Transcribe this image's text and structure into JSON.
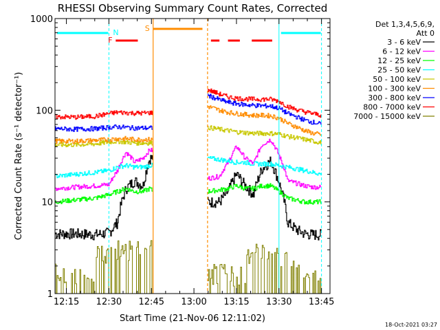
{
  "chart_data": {
    "type": "line",
    "title": "RHESSI Observing Summary Count Rates, Corrected",
    "xlabel": "Start Time (21-Nov-06 12:11:02)",
    "ylabel": "Corrected Count Rate (s⁻¹ detector⁻¹)",
    "xlim": [
      12.183,
      13.8
    ],
    "ylim": [
      1,
      1000
    ],
    "yscale": "log",
    "x_ticks": [
      {
        "value": 12.25,
        "label": "12:15"
      },
      {
        "value": 12.5,
        "label": "12:30"
      },
      {
        "value": 12.75,
        "label": "12:45"
      },
      {
        "value": 13.0,
        "label": "13:00"
      },
      {
        "value": 13.25,
        "label": "13:15"
      },
      {
        "value": 13.5,
        "label": "13:30"
      },
      {
        "value": 13.75,
        "label": "13:45"
      }
    ],
    "y_ticks": [
      {
        "value": 1,
        "label": "1"
      },
      {
        "value": 10,
        "label": "10"
      },
      {
        "value": 100,
        "label": "100"
      },
      {
        "value": 1000,
        "label": "1000"
      }
    ],
    "legend": {
      "header": [
        "Det 1,3,4,5,6,9,",
        "Att 0"
      ],
      "placement": "right"
    },
    "footer": "18-Oct-2021 03:27",
    "series": [
      {
        "name": "3 - 6 keV",
        "color": "#000000",
        "kind": "low",
        "x": [
          12.183,
          12.3,
          12.42,
          12.5,
          12.55,
          12.6,
          12.65,
          12.7,
          12.74,
          12.76
        ],
        "y": [
          4.5,
          4.5,
          4.4,
          4.6,
          6,
          14,
          17,
          15,
          30,
          30
        ]
      },
      {
        "name": "3 - 6 keV",
        "color": "#000000",
        "kind": "flare",
        "x": [
          13.08,
          13.15,
          13.2,
          13.25,
          13.3,
          13.35,
          13.4,
          13.45,
          13.5,
          13.55,
          13.6,
          13.65,
          13.7,
          13.75
        ],
        "y": [
          10,
          10,
          13,
          20,
          15,
          12,
          23,
          28,
          16,
          6,
          5,
          4.5,
          4.4,
          4.4
        ]
      },
      {
        "name": "6 - 12 keV",
        "color": "#ff00ff",
        "kind": "low",
        "x": [
          12.183,
          12.3,
          12.42,
          12.5,
          12.55,
          12.6,
          12.65,
          12.7,
          12.74,
          12.76
        ],
        "y": [
          14,
          14.5,
          15,
          15.5,
          22,
          35,
          27,
          30,
          37,
          36
        ]
      },
      {
        "name": "6 - 12 keV",
        "color": "#ff00ff",
        "kind": "flare",
        "x": [
          13.08,
          13.15,
          13.2,
          13.25,
          13.3,
          13.35,
          13.4,
          13.45,
          13.5,
          13.55,
          13.6,
          13.65,
          13.7,
          13.75
        ],
        "y": [
          18,
          19,
          27,
          40,
          30,
          26,
          42,
          48,
          32,
          17,
          16,
          15,
          14.5,
          14.5
        ]
      },
      {
        "name": "12 - 25 keV",
        "color": "#00ff00",
        "kind": "low",
        "x": [
          12.183,
          12.3,
          12.42,
          12.5,
          12.55,
          12.6,
          12.65,
          12.7,
          12.74,
          12.76
        ],
        "y": [
          10,
          10.5,
          11,
          12,
          13,
          14,
          13,
          13,
          14,
          13
        ]
      },
      {
        "name": "12 - 25 keV",
        "color": "#00ff00",
        "kind": "flare",
        "x": [
          13.08,
          13.15,
          13.2,
          13.25,
          13.3,
          13.35,
          13.4,
          13.45,
          13.5,
          13.55,
          13.6,
          13.65,
          13.7,
          13.75
        ],
        "y": [
          13,
          13.5,
          14,
          15,
          14,
          14,
          15,
          15,
          13,
          11,
          10.5,
          10,
          10,
          10
        ]
      },
      {
        "name": "25 - 50 keV",
        "color": "#00ffff",
        "kind": "low",
        "x": [
          12.183,
          12.3,
          12.42,
          12.5,
          12.55,
          12.6,
          12.65,
          12.7,
          12.74,
          12.76
        ],
        "y": [
          19,
          20,
          21,
          22,
          24,
          25,
          24,
          24,
          25,
          25
        ]
      },
      {
        "name": "25 - 50 keV",
        "color": "#00ffff",
        "kind": "flare",
        "x": [
          13.08,
          13.15,
          13.2,
          13.25,
          13.3,
          13.35,
          13.4,
          13.45,
          13.5,
          13.55,
          13.6,
          13.65,
          13.7,
          13.75
        ],
        "y": [
          30,
          29,
          28,
          27,
          27,
          26,
          26,
          26,
          25,
          24,
          23,
          22,
          21,
          20
        ]
      },
      {
        "name": "50 - 100 keV",
        "color": "#c8c800",
        "kind": "low",
        "x": [
          12.183,
          12.3,
          12.42,
          12.5,
          12.55,
          12.6,
          12.65,
          12.7,
          12.74,
          12.76
        ],
        "y": [
          42,
          42,
          43,
          45,
          46,
          45,
          44,
          44,
          44,
          44
        ]
      },
      {
        "name": "50 - 100 keV",
        "color": "#c8c800",
        "kind": "flare",
        "x": [
          13.08,
          13.15,
          13.2,
          13.25,
          13.3,
          13.35,
          13.4,
          13.45,
          13.5,
          13.55,
          13.6,
          13.65,
          13.7,
          13.75
        ],
        "y": [
          65,
          62,
          60,
          58,
          57,
          56,
          56,
          56,
          55,
          52,
          50,
          48,
          46,
          44
        ]
      },
      {
        "name": "100 - 300 keV",
        "color": "#ff8c00",
        "kind": "low",
        "x": [
          12.183,
          12.3,
          12.42,
          12.5,
          12.55,
          12.6,
          12.65,
          12.7,
          12.74,
          12.76
        ],
        "y": [
          46,
          46,
          47,
          48,
          49,
          49,
          48,
          48,
          48,
          48
        ]
      },
      {
        "name": "100 - 300 keV",
        "color": "#ff8c00",
        "kind": "flare",
        "x": [
          13.08,
          13.15,
          13.2,
          13.25,
          13.3,
          13.35,
          13.4,
          13.45,
          13.5,
          13.55,
          13.6,
          13.65,
          13.7,
          13.75
        ],
        "y": [
          110,
          100,
          95,
          92,
          90,
          88,
          88,
          87,
          82,
          72,
          66,
          60,
          56,
          54
        ]
      },
      {
        "name": "300 - 800 keV",
        "color": "#0000ff",
        "kind": "low",
        "x": [
          12.183,
          12.3,
          12.42,
          12.5,
          12.55,
          12.6,
          12.65,
          12.7,
          12.74,
          12.76
        ],
        "y": [
          63,
          62,
          63,
          65,
          66,
          65,
          64,
          64,
          64,
          64
        ]
      },
      {
        "name": "300 - 800 keV",
        "color": "#0000ff",
        "kind": "flare",
        "x": [
          13.08,
          13.15,
          13.2,
          13.25,
          13.3,
          13.35,
          13.4,
          13.45,
          13.5,
          13.55,
          13.6,
          13.65,
          13.7,
          13.75
        ],
        "y": [
          145,
          130,
          122,
          118,
          115,
          113,
          112,
          111,
          105,
          92,
          85,
          78,
          74,
          70
        ]
      },
      {
        "name": "800 - 7000 keV",
        "color": "#ff0000",
        "kind": "low",
        "x": [
          12.183,
          12.3,
          12.42,
          12.5,
          12.55,
          12.6,
          12.65,
          12.7,
          12.74,
          12.76
        ],
        "y": [
          85,
          84,
          86,
          92,
          95,
          94,
          93,
          93,
          94,
          94
        ]
      },
      {
        "name": "800 - 7000 keV",
        "color": "#ff0000",
        "kind": "flare",
        "x": [
          13.08,
          13.15,
          13.2,
          13.25,
          13.3,
          13.35,
          13.4,
          13.45,
          13.5,
          13.55,
          13.6,
          13.65,
          13.7,
          13.75
        ],
        "y": [
          168,
          150,
          140,
          135,
          133,
          132,
          132,
          132,
          125,
          110,
          102,
          96,
          92,
          88
        ]
      },
      {
        "name": "7000 - 15000 keV",
        "color": "#808000",
        "kind": "steps",
        "x": [
          12.183,
          12.42,
          12.42,
          12.5,
          12.5,
          12.74,
          12.76
        ],
        "y": [
          1.5,
          1.5,
          2.5,
          2.5,
          2.8,
          2.8,
          2.8
        ]
      },
      {
        "name": "7000 - 15000 keV",
        "color": "#808000",
        "kind": "steps",
        "x": [
          13.08,
          13.3,
          13.3,
          13.5,
          13.5,
          13.6,
          13.6,
          13.75
        ],
        "y": [
          1.5,
          1.5,
          2.5,
          2.5,
          2.2,
          2.2,
          1.5,
          1.5
        ]
      }
    ],
    "legend_entries": [
      {
        "label": "3 - 6 keV",
        "color": "#000000"
      },
      {
        "label": "6 - 12 keV",
        "color": "#ff00ff"
      },
      {
        "label": "12 - 25 keV",
        "color": "#00ff00"
      },
      {
        "label": "25 - 50 keV",
        "color": "#00ffff"
      },
      {
        "label": "50 - 100 keV",
        "color": "#c8c800"
      },
      {
        "label": "100 - 300 keV",
        "color": "#ff8c00"
      },
      {
        "label": "300 - 800 keV",
        "color": "#0000ff"
      },
      {
        "label": "800 - 7000 keV",
        "color": "#ff0000"
      },
      {
        "label": "7000 - 15000 keV",
        "color": "#808000"
      }
    ],
    "annotations": {
      "night_vlines": {
        "color": "#00ffff",
        "x": [
          12.5,
          13.5,
          13.75
        ]
      },
      "saa_vlines": {
        "color": "#ff8c00",
        "x": [
          12.76,
          13.08
        ]
      },
      "night_bars": {
        "color": "#00ffff",
        "label": "N",
        "segments": [
          [
            12.183,
            12.5
          ],
          [
            13.5,
            13.75
          ]
        ]
      },
      "saa_bar": {
        "color": "#ff8c00",
        "label": "S",
        "segments": [
          [
            12.76,
            13.05
          ]
        ]
      },
      "flare_bars": {
        "color": "#ff0000",
        "label": "F",
        "segments": [
          [
            12.54,
            12.67
          ],
          [
            13.1,
            13.15
          ],
          [
            13.2,
            13.27
          ],
          [
            13.34,
            13.46
          ]
        ]
      }
    }
  }
}
